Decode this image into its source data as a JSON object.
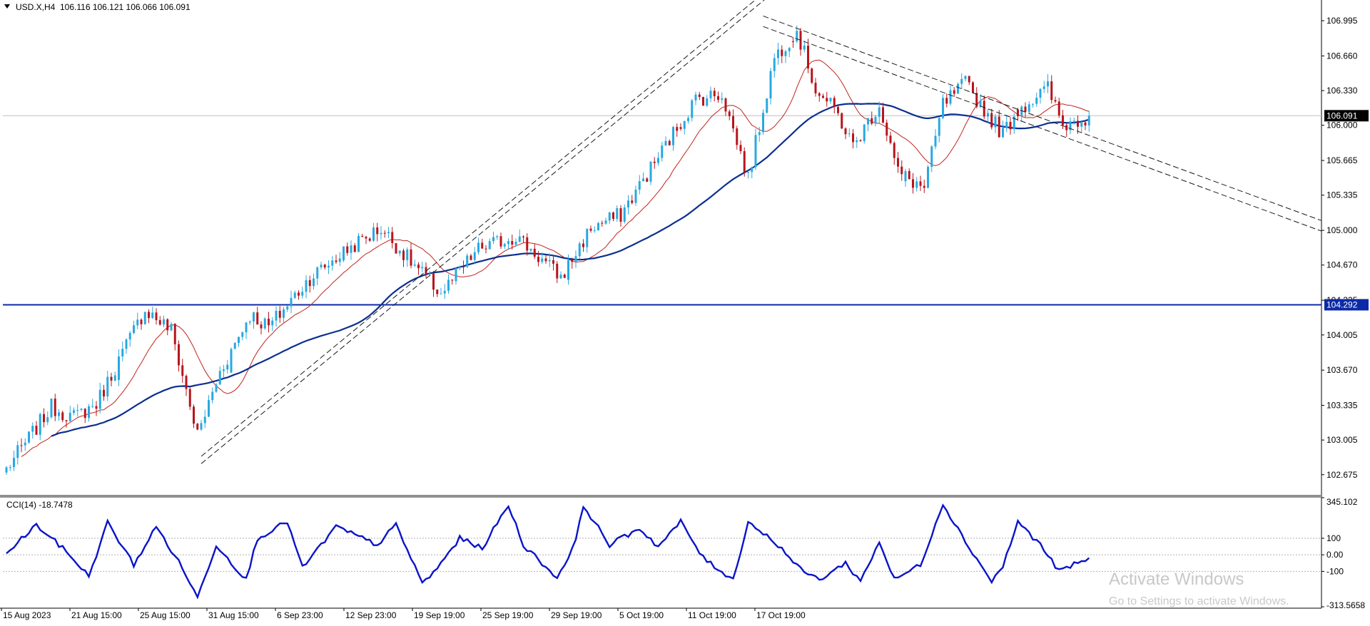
{
  "header": {
    "symbol": "USD.X,H4",
    "ohlc": "106.116 106.121 106.066 106.091"
  },
  "colors": {
    "bull": "#29a8e0",
    "bear": "#b8141c",
    "ma_fast": "#c0241c",
    "ma_slow": "#0c2f8f",
    "hline": "#0c2aa8",
    "cci": "#0a14c8",
    "price_box": "#000000",
    "level_box": "#0c2aa8"
  },
  "chart_data": [
    {
      "type": "candlestick",
      "title": "",
      "symbol": "USD.X",
      "timeframe": "H4",
      "current_price": 106.091,
      "current_price_label": "106.091",
      "ylim": [
        102.47,
        107.165
      ],
      "y_ticks": [
        "106.995",
        "106.660",
        "106.330",
        "106.000",
        "105.665",
        "105.335",
        "105.000",
        "104.670",
        "104.335",
        "104.005",
        "103.670",
        "103.335",
        "103.005",
        "102.675"
      ],
      "x_ticks": [
        "15 Aug 2023",
        "21 Aug 15:00",
        "25 Aug 15:00",
        "31 Aug 15:00",
        "6 Sep 23:00",
        "12 Sep 23:00",
        "19 Sep 19:00",
        "25 Sep 19:00",
        "29 Sep 19:00",
        "5 Oct 19:00",
        "11 Oct 19:00",
        "17 Oct 19:00"
      ],
      "horizontal_line": {
        "value": 104.292,
        "label": "104.292"
      },
      "trend_channels": [
        {
          "name": "ascending",
          "start": [
            "2023-08-25 19:00",
            102.85
          ],
          "end": [
            "2023-10-05 11:00",
            107.9
          ],
          "offset": 0.07
        },
        {
          "name": "descending",
          "start": [
            "2023-09-29 19:00",
            107.04
          ],
          "end": [
            "2023-11-22 23:00",
            104.03
          ],
          "offset": 0.1
        }
      ],
      "series": [
        {
          "name": "",
          "kind": "ohlc",
          "anchors": [
            [
              "2023-08-15 03:00",
              102.73
            ],
            [
              "2023-08-17 03:00",
              103.32
            ],
            [
              "2023-08-18 03:00",
              103.22
            ],
            [
              "2023-08-21 03:00",
              103.35
            ],
            [
              "2023-08-23 07:00",
              104.25
            ],
            [
              "2023-08-24 11:00",
              104.05
            ],
            [
              "2023-08-25 15:00",
              103.05
            ],
            [
              "2023-08-28 15:00",
              103.65
            ],
            [
              "2023-08-29 23:00",
              104.2
            ],
            [
              "2023-08-30 19:00",
              104.08
            ],
            [
              "2023-09-01 15:00",
              104.55
            ],
            [
              "2023-09-05 07:00",
              104.82
            ],
            [
              "2023-09-06 19:00",
              105.02
            ],
            [
              "2023-09-08 03:00",
              104.7
            ],
            [
              "2023-09-11 11:00",
              104.4
            ],
            [
              "2023-09-13 03:00",
              104.82
            ],
            [
              "2023-09-14 19:00",
              104.95
            ],
            [
              "2023-09-18 19:00",
              104.55
            ],
            [
              "2023-09-20 03:00",
              105.02
            ],
            [
              "2023-09-21 11:00",
              105.15
            ],
            [
              "2023-09-25 03:00",
              105.7
            ],
            [
              "2023-09-26 19:00",
              106.25
            ],
            [
              "2023-09-27 23:00",
              106.3
            ],
            [
              "2023-09-29 03:00",
              105.5
            ],
            [
              "2023-10-02 07:00",
              106.65
            ],
            [
              "2023-10-03 07:00",
              106.9
            ],
            [
              "2023-10-04 03:00",
              106.35
            ],
            [
              "2023-10-05 03:00",
              106.1
            ],
            [
              "2023-10-05 19:00",
              105.8
            ],
            [
              "2023-10-06 23:00",
              106.2
            ],
            [
              "2023-10-09 19:00",
              105.55
            ],
            [
              "2023-10-10 23:00",
              105.4
            ],
            [
              "2023-10-11 19:00",
              106.2
            ],
            [
              "2023-10-12 19:00",
              106.4
            ],
            [
              "2023-10-13 19:00",
              106.1
            ],
            [
              "2023-10-16 11:00",
              105.92
            ],
            [
              "2023-10-17 03:00",
              106.15
            ],
            [
              "2023-10-18 11:00",
              106.35
            ],
            [
              "2023-10-19 03:00",
              106.0
            ],
            [
              "2023-10-20 07:00",
              106.09
            ]
          ]
        },
        {
          "name": "",
          "kind": "moving_average_fast"
        },
        {
          "name": "",
          "kind": "moving_average_slow"
        }
      ]
    },
    {
      "type": "line",
      "indicator": "CCI(14)",
      "label": "CCI(14) -18.7478",
      "last_value": -18.7478,
      "ylim": [
        -313.5658,
        345.102
      ],
      "levels": [
        100,
        0,
        -100
      ],
      "y_ticks": [
        "345.102",
        "100",
        "0.00",
        "-100",
        "-313.5658"
      ],
      "series": [
        {
          "name": "",
          "anchors": [
            [
              "2023-08-15 03:00",
              10
            ],
            [
              "2023-08-16 11:00",
              180
            ],
            [
              "2023-08-17 19:00",
              20
            ],
            [
              "2023-08-18 19:00",
              -130
            ],
            [
              "2023-08-21 15:00",
              195
            ],
            [
              "2023-08-22 19:00",
              -60
            ],
            [
              "2023-08-23 19:00",
              170
            ],
            [
              "2023-08-24 23:00",
              -80
            ],
            [
              "2023-08-25 15:00",
              -260
            ],
            [
              "2023-08-28 11:00",
              60
            ],
            [
              "2023-08-29 19:00",
              -150
            ],
            [
              "2023-08-30 07:00",
              100
            ],
            [
              "2023-08-31 15:00",
              200
            ],
            [
              "2023-09-01 07:00",
              -80
            ],
            [
              "2023-09-04 19:00",
              170
            ],
            [
              "2023-09-06 15:00",
              60
            ],
            [
              "2023-09-07 11:00",
              180
            ],
            [
              "2023-09-08 15:00",
              -170
            ],
            [
              "2023-09-11 03:00",
              -110
            ],
            [
              "2023-09-12 07:00",
              100
            ],
            [
              "2023-09-13 07:00",
              40
            ],
            [
              "2023-09-14 11:00",
              300
            ],
            [
              "2023-09-15 03:00",
              60
            ],
            [
              "2023-09-18 15:00",
              -140
            ],
            [
              "2023-09-19 11:00",
              80
            ],
            [
              "2023-09-19 19:00",
              300
            ],
            [
              "2023-09-20 23:00",
              60
            ],
            [
              "2023-09-22 07:00",
              160
            ],
            [
              "2023-09-25 03:00",
              50
            ],
            [
              "2023-09-26 03:00",
              200
            ],
            [
              "2023-09-27 03:00",
              -20
            ],
            [
              "2023-09-28 11:00",
              -150
            ],
            [
              "2023-09-29 03:00",
              200
            ],
            [
              "2023-10-02 11:00",
              60
            ],
            [
              "2023-10-03 11:00",
              -90
            ],
            [
              "2023-10-04 07:00",
              -150
            ],
            [
              "2023-10-05 11:00",
              -50
            ],
            [
              "2023-10-06 03:00",
              -160
            ],
            [
              "2023-10-06 23:00",
              80
            ],
            [
              "2023-10-09 15:00",
              -150
            ],
            [
              "2023-10-10 19:00",
              -60
            ],
            [
              "2023-10-11 19:00",
              310
            ],
            [
              "2023-10-12 19:00",
              80
            ],
            [
              "2023-10-13 23:00",
              -160
            ],
            [
              "2023-10-16 11:00",
              -70
            ],
            [
              "2023-10-17 03:00",
              200
            ],
            [
              "2023-10-18 03:00",
              60
            ],
            [
              "2023-10-18 23:00",
              -100
            ],
            [
              "2023-10-20 07:00",
              -19
            ]
          ]
        }
      ]
    }
  ],
  "watermark": {
    "line1": "Activate Windows",
    "line2": "Go to Settings to activate Windows."
  }
}
